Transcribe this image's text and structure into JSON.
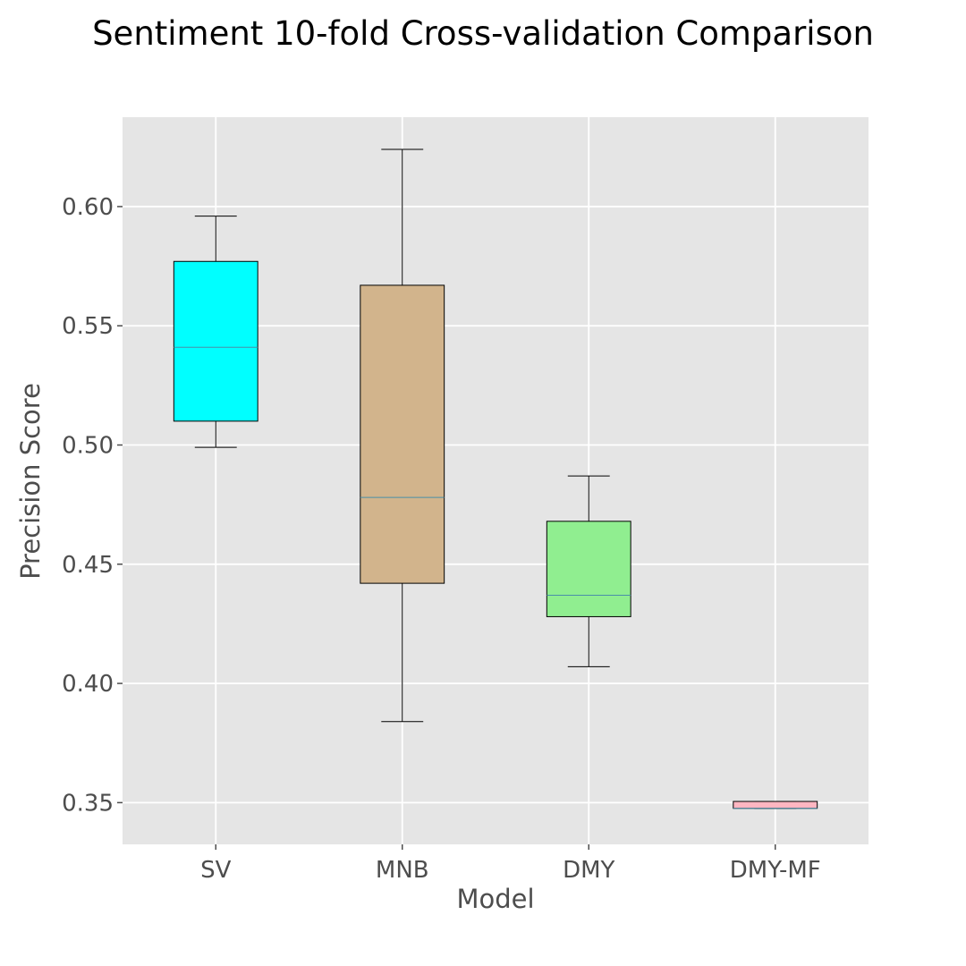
{
  "chart_data": {
    "type": "box",
    "title": "Sentiment 10-fold Cross-validation Comparison",
    "xlabel": "Model",
    "ylabel": "Precision Score",
    "ylim": [
      0.3325,
      0.6375
    ],
    "yticks": [
      "0.35",
      "0.40",
      "0.45",
      "0.50",
      "0.55",
      "0.60"
    ],
    "grid": true,
    "categories": [
      "SV",
      "MNB",
      "DMY",
      "DMY-MF"
    ],
    "boxes": [
      {
        "label": "SV",
        "whisker_low": 0.499,
        "q1": 0.51,
        "median": 0.541,
        "q3": 0.577,
        "whisker_high": 0.596,
        "color": "#00ffff"
      },
      {
        "label": "MNB",
        "whisker_low": 0.384,
        "q1": 0.442,
        "median": 0.478,
        "q3": 0.567,
        "whisker_high": 0.624,
        "color": "#d2b48c"
      },
      {
        "label": "DMY",
        "whisker_low": 0.407,
        "q1": 0.428,
        "median": 0.437,
        "q3": 0.468,
        "whisker_high": 0.487,
        "color": "#90ee90"
      },
      {
        "label": "DMY-MF",
        "whisker_low": 0.3476,
        "q1": 0.3476,
        "median": 0.3476,
        "q3": 0.3505,
        "whisker_high": 0.3505,
        "color": "#ffb6c1"
      }
    ],
    "panel_color": "#e5e5e5",
    "grid_color": "#ffffff",
    "median_color": "#4a8fa8"
  }
}
